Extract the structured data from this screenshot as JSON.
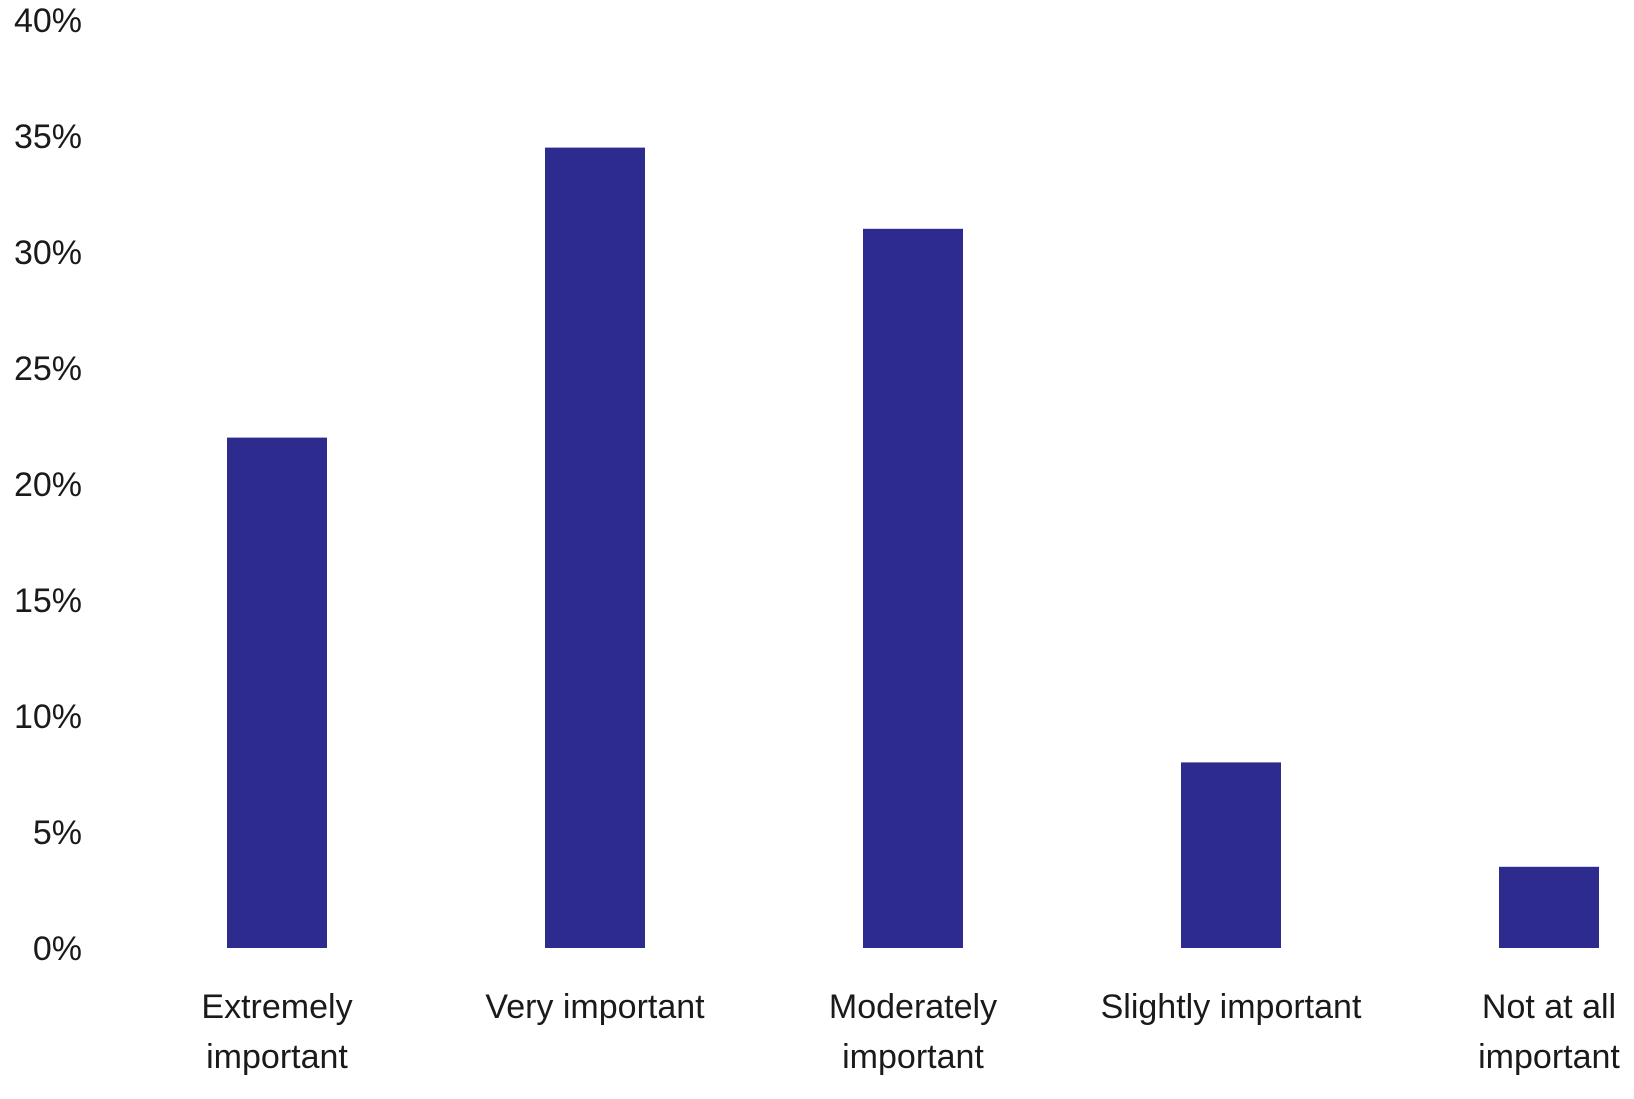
{
  "chart_data": {
    "type": "bar",
    "title": "",
    "xlabel": "",
    "ylabel": "",
    "categories": [
      [
        "Extremely",
        "important"
      ],
      [
        "Very important"
      ],
      [
        "Moderately",
        "important"
      ],
      [
        "Slightly important"
      ],
      [
        "Not at all",
        "important"
      ]
    ],
    "values": [
      22,
      34.5,
      31,
      8,
      3.5
    ],
    "ylim": [
      0,
      40
    ],
    "yticks": [
      0,
      5,
      10,
      15,
      20,
      25,
      30,
      35,
      40
    ],
    "ytick_labels": [
      "0%",
      "5%",
      "10%",
      "15%",
      "20%",
      "25%",
      "30%",
      "35%",
      "40%"
    ],
    "grid": false,
    "legend": "none",
    "bar_color": "#2e2b8f"
  }
}
